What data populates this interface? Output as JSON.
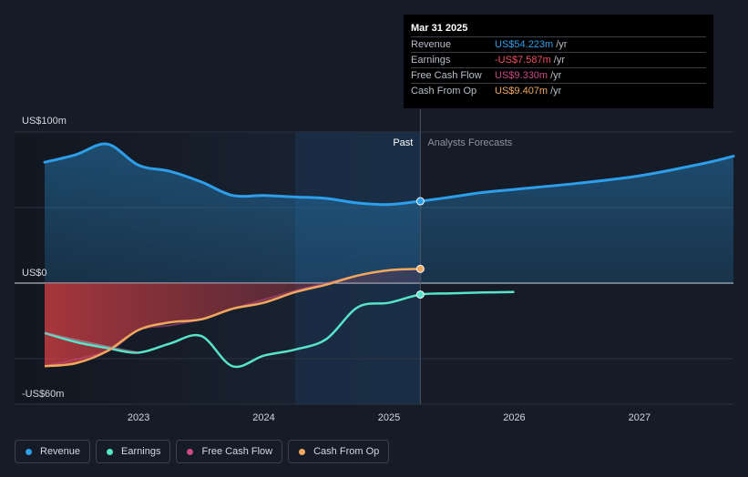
{
  "chart_data": {
    "type": "line",
    "x_axis": {
      "ticks": [
        "2023",
        "2024",
        "2025",
        "2026",
        "2027"
      ]
    },
    "y_axis": {
      "labels": [
        "US$100m",
        "US$0",
        "-US$60m"
      ],
      "ylim": [
        -60,
        100
      ]
    },
    "sections": {
      "past_label": "Past",
      "forecast_label": "Analysts Forecasts"
    },
    "series": [
      {
        "name": "Revenue",
        "color": "#2d9ee9",
        "points": [
          [
            "2022.25",
            80
          ],
          [
            "2022.5",
            85
          ],
          [
            "2022.75",
            92
          ],
          [
            "2023.0",
            78
          ],
          [
            "2023.25",
            74
          ],
          [
            "2023.5",
            67
          ],
          [
            "2023.75",
            58
          ],
          [
            "2024.0",
            58
          ],
          [
            "2024.25",
            57
          ],
          [
            "2024.5",
            56
          ],
          [
            "2024.75",
            53
          ],
          [
            "2025.0",
            52
          ],
          [
            "2025.25",
            54.2
          ],
          [
            "2025.5",
            57
          ],
          [
            "2025.75",
            60
          ],
          [
            "2026.0",
            62
          ],
          [
            "2026.5",
            66
          ],
          [
            "2027.0",
            71
          ],
          [
            "2027.5",
            79
          ],
          [
            "2027.75",
            84
          ]
        ]
      },
      {
        "name": "Earnings",
        "color": "#57e4c9",
        "points": [
          [
            "2022.25",
            -33
          ],
          [
            "2022.5",
            -39
          ],
          [
            "2022.75",
            -43
          ],
          [
            "2023.0",
            -46
          ],
          [
            "2023.25",
            -40
          ],
          [
            "2023.5",
            -35
          ],
          [
            "2023.75",
            -55
          ],
          [
            "2024.0",
            -48
          ],
          [
            "2024.25",
            -44
          ],
          [
            "2024.5",
            -37
          ],
          [
            "2024.75",
            -16
          ],
          [
            "2025.0",
            -13
          ],
          [
            "2025.25",
            -7.6
          ],
          [
            "2025.5",
            -6.8
          ],
          [
            "2025.75",
            -6.2
          ],
          [
            "2026.0",
            -5.9
          ]
        ]
      },
      {
        "name": "Free Cash Flow",
        "color": "#c94b86",
        "points": [
          [
            "2022.25",
            -55
          ],
          [
            "2022.75",
            -45
          ],
          [
            "2023.0",
            -31
          ],
          [
            "2023.25",
            -28
          ],
          [
            "2023.5",
            -24
          ],
          [
            "2023.75",
            -17
          ],
          [
            "2024.0",
            -11
          ],
          [
            "2024.25",
            -5
          ],
          [
            "2024.5",
            0
          ],
          [
            "2024.75",
            5
          ],
          [
            "2025.0",
            8.5
          ],
          [
            "2025.25",
            9.33
          ]
        ]
      },
      {
        "name": "Cash From Op",
        "color": "#f0a85f",
        "points": [
          [
            "2022.25",
            -55
          ],
          [
            "2022.5",
            -53
          ],
          [
            "2022.75",
            -45
          ],
          [
            "2023.0",
            -31
          ],
          [
            "2023.25",
            -26
          ],
          [
            "2023.5",
            -24
          ],
          [
            "2023.75",
            -17
          ],
          [
            "2024.0",
            -13
          ],
          [
            "2024.25",
            -6
          ],
          [
            "2024.5",
            -1
          ],
          [
            "2024.75",
            5
          ],
          [
            "2025.0",
            8.5
          ],
          [
            "2025.25",
            9.41
          ]
        ]
      }
    ]
  },
  "tooltip": {
    "date": "Mar 31 2025",
    "rows": [
      {
        "label": "Revenue",
        "value": "US$54.223m",
        "unit": "/yr",
        "color": "#2d9ee9"
      },
      {
        "label": "Earnings",
        "value": "-US$7.587m",
        "unit": "/yr",
        "color": "#f04f5d"
      },
      {
        "label": "Free Cash Flow",
        "value": "US$9.330m",
        "unit": "/yr",
        "color": "#c94b86"
      },
      {
        "label": "Cash From Op",
        "value": "US$9.407m",
        "unit": "/yr",
        "color": "#f0a85f"
      }
    ]
  },
  "legend": [
    {
      "label": "Revenue",
      "color": "#2d9ee9"
    },
    {
      "label": "Earnings",
      "color": "#57e4c9"
    },
    {
      "label": "Free Cash Flow",
      "color": "#c94b86"
    },
    {
      "label": "Cash From Op",
      "color": "#f0a85f"
    }
  ]
}
